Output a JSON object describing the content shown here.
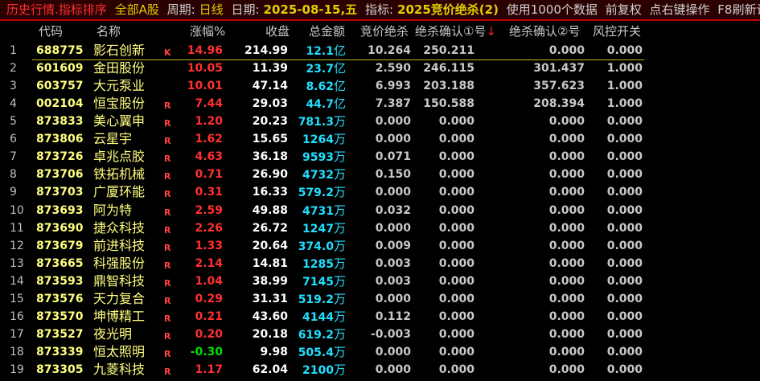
{
  "titlebar": {
    "module": "历史行情.指标排序",
    "market": "全部A股",
    "period_label": "周期:",
    "period": "日线",
    "date_label": "日期:",
    "date": "2025-08-15,五",
    "indicator_label": "指标:",
    "indicator": "2025竞价绝杀(2)",
    "info1": "使用1000个数据",
    "info2": "前复权",
    "info3": "点右键操作",
    "info4": "F8刷新计算"
  },
  "columns": [
    "代码",
    "名称",
    "涨幅%",
    "收盘",
    "总金额",
    "竞价绝杀",
    "绝杀确认①号",
    "绝杀确认②号",
    "风控开关"
  ],
  "sort_indicator": "↓",
  "colors": {
    "up": "#ff3030",
    "down": "#00e000",
    "code": "#ffff80",
    "amount": "#20e0ff"
  },
  "rows": [
    {
      "idx": "1",
      "code": "688775",
      "name": "影石创新",
      "flag": "K",
      "chg": "14.96",
      "close": "214.99",
      "amt": "12.1",
      "unit": "亿",
      "c5": "10.264",
      "c6": "250.211",
      "c7": "0.000",
      "c8": "0.000",
      "dir": "up"
    },
    {
      "idx": "2",
      "code": "601609",
      "name": "金田股份",
      "flag": "",
      "chg": "10.05",
      "close": "11.39",
      "amt": "23.7",
      "unit": "亿",
      "c5": "2.590",
      "c6": "246.115",
      "c7": "301.437",
      "c8": "1.000",
      "dir": "up"
    },
    {
      "idx": "3",
      "code": "603757",
      "name": "大元泵业",
      "flag": "",
      "chg": "10.01",
      "close": "47.14",
      "amt": "8.62",
      "unit": "亿",
      "c5": "6.993",
      "c6": "203.188",
      "c7": "357.623",
      "c8": "1.000",
      "dir": "up"
    },
    {
      "idx": "4",
      "code": "002104",
      "name": "恒宝股份",
      "flag": "R",
      "chg": "7.44",
      "close": "29.03",
      "amt": "44.7",
      "unit": "亿",
      "c5": "7.387",
      "c6": "150.588",
      "c7": "208.394",
      "c8": "1.000",
      "dir": "up"
    },
    {
      "idx": "5",
      "code": "873833",
      "name": "美心翼申",
      "flag": "R",
      "chg": "1.20",
      "close": "20.23",
      "amt": "781.3",
      "unit": "万",
      "c5": "0.000",
      "c6": "0.000",
      "c7": "0.000",
      "c8": "0.000",
      "dir": "up"
    },
    {
      "idx": "6",
      "code": "873806",
      "name": "云星宇",
      "flag": "R",
      "chg": "1.62",
      "close": "15.65",
      "amt": "1264",
      "unit": "万",
      "c5": "0.000",
      "c6": "0.000",
      "c7": "0.000",
      "c8": "0.000",
      "dir": "up"
    },
    {
      "idx": "7",
      "code": "873726",
      "name": "卓兆点胶",
      "flag": "R",
      "chg": "4.63",
      "close": "36.18",
      "amt": "9593",
      "unit": "万",
      "c5": "0.071",
      "c6": "0.000",
      "c7": "0.000",
      "c8": "0.000",
      "dir": "up"
    },
    {
      "idx": "8",
      "code": "873706",
      "name": "铁拓机械",
      "flag": "R",
      "chg": "0.71",
      "close": "26.90",
      "amt": "4732",
      "unit": "万",
      "c5": "0.150",
      "c6": "0.000",
      "c7": "0.000",
      "c8": "0.000",
      "dir": "up"
    },
    {
      "idx": "9",
      "code": "873703",
      "name": "广厦环能",
      "flag": "R",
      "chg": "0.31",
      "close": "16.33",
      "amt": "579.2",
      "unit": "万",
      "c5": "0.000",
      "c6": "0.000",
      "c7": "0.000",
      "c8": "0.000",
      "dir": "up"
    },
    {
      "idx": "10",
      "code": "873693",
      "name": "阿为特",
      "flag": "R",
      "chg": "2.59",
      "close": "49.88",
      "amt": "4731",
      "unit": "万",
      "c5": "0.032",
      "c6": "0.000",
      "c7": "0.000",
      "c8": "0.000",
      "dir": "up"
    },
    {
      "idx": "11",
      "code": "873690",
      "name": "捷众科技",
      "flag": "R",
      "chg": "2.26",
      "close": "26.72",
      "amt": "1247",
      "unit": "万",
      "c5": "0.000",
      "c6": "0.000",
      "c7": "0.000",
      "c8": "0.000",
      "dir": "up"
    },
    {
      "idx": "12",
      "code": "873679",
      "name": "前进科技",
      "flag": "R",
      "chg": "1.33",
      "close": "20.64",
      "amt": "374.0",
      "unit": "万",
      "c5": "0.009",
      "c6": "0.000",
      "c7": "0.000",
      "c8": "0.000",
      "dir": "up"
    },
    {
      "idx": "13",
      "code": "873665",
      "name": "科强股份",
      "flag": "R",
      "chg": "2.14",
      "close": "14.81",
      "amt": "1285",
      "unit": "万",
      "c5": "0.003",
      "c6": "0.000",
      "c7": "0.000",
      "c8": "0.000",
      "dir": "up"
    },
    {
      "idx": "14",
      "code": "873593",
      "name": "鼎智科技",
      "flag": "R",
      "chg": "1.04",
      "close": "38.99",
      "amt": "7145",
      "unit": "万",
      "c5": "0.003",
      "c6": "0.000",
      "c7": "0.000",
      "c8": "0.000",
      "dir": "up"
    },
    {
      "idx": "15",
      "code": "873576",
      "name": "天力复合",
      "flag": "R",
      "chg": "0.29",
      "close": "31.31",
      "amt": "519.2",
      "unit": "万",
      "c5": "0.000",
      "c6": "0.000",
      "c7": "0.000",
      "c8": "0.000",
      "dir": "up"
    },
    {
      "idx": "16",
      "code": "873570",
      "name": "坤博精工",
      "flag": "R",
      "chg": "0.21",
      "close": "43.60",
      "amt": "4144",
      "unit": "万",
      "c5": "0.112",
      "c6": "0.000",
      "c7": "0.000",
      "c8": "0.000",
      "dir": "up"
    },
    {
      "idx": "17",
      "code": "873527",
      "name": "夜光明",
      "flag": "R",
      "chg": "0.20",
      "close": "20.18",
      "amt": "619.2",
      "unit": "万",
      "c5": "-0.003",
      "c6": "0.000",
      "c7": "0.000",
      "c8": "0.000",
      "dir": "up"
    },
    {
      "idx": "18",
      "code": "873339",
      "name": "恒太照明",
      "flag": "R",
      "chg": "-0.30",
      "close": "9.98",
      "amt": "505.4",
      "unit": "万",
      "c5": "0.000",
      "c6": "0.000",
      "c7": "0.000",
      "c8": "0.000",
      "dir": "down"
    },
    {
      "idx": "19",
      "code": "873305",
      "name": "九菱科技",
      "flag": "R",
      "chg": "1.17",
      "close": "62.04",
      "amt": "2100",
      "unit": "万",
      "c5": "0.000",
      "c6": "0.000",
      "c7": "0.000",
      "c8": "0.000",
      "dir": "up"
    }
  ]
}
